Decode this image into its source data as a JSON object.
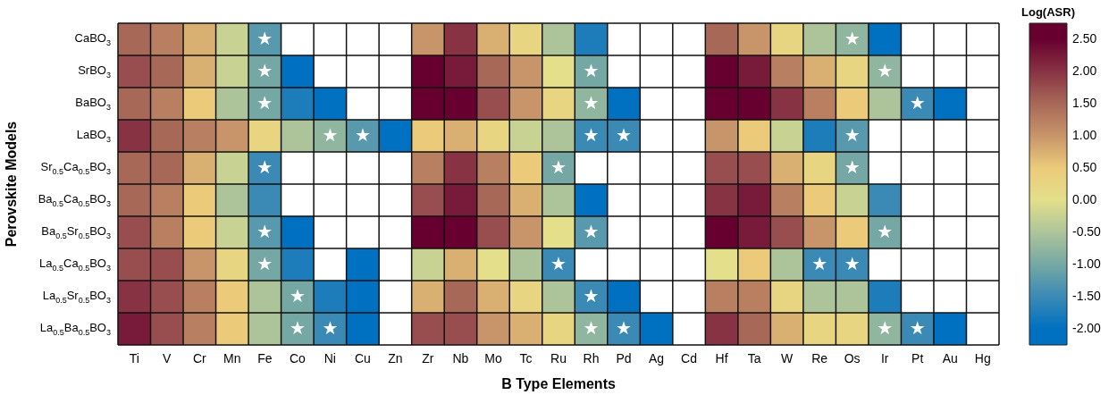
{
  "chart_data": {
    "type": "heatmap",
    "xlabel": "B Type Elements",
    "ylabel": "Perovskite Models",
    "clabel": "Log(ASR)",
    "categories": [
      "Ti",
      "V",
      "Cr",
      "Mn",
      "Fe",
      "Co",
      "Ni",
      "Cu",
      "Zn",
      "Zr",
      "Nb",
      "Mo",
      "Tc",
      "Ru",
      "Rh",
      "Pd",
      "Ag",
      "Cd",
      "Hf",
      "Ta",
      "W",
      "Re",
      "Os",
      "Ir",
      "Pt",
      "Au",
      "Hg"
    ],
    "y_categories": [
      "CaBO$_{3}$",
      "SrBO$_{3}$",
      "BaBO$_{3}$",
      "LaBO$_{3}$",
      "Sr$_{0.5}$Ca$_{0.5}$BO$_{3}$",
      "Ba$_{0.5}$Ca$_{0.5}$BO$_{3}$",
      "Ba$_{0.5}$Sr$_{0.5}$BO$_{3}$",
      "La$_{0.5}$Ca$_{0.5}$BO$_{3}$",
      "La$_{0.5}$Sr$_{0.5}$BO$_{3}$",
      "La$_{0.5}$Ba$_{0.5}$BO$_{3}$"
    ],
    "cells": [
      [
        1.5,
        1.25,
        0.75,
        -0.25,
        -1.25,
        null,
        null,
        null,
        null,
        1.0,
        2.0,
        0.75,
        0.25,
        -0.5,
        -1.75,
        null,
        null,
        null,
        1.5,
        1.0,
        0.25,
        -0.5,
        -0.75,
        -2.0,
        null,
        null,
        null
      ],
      [
        1.75,
        1.5,
        0.75,
        -0.25,
        -1.0,
        -2.0,
        null,
        null,
        null,
        2.5,
        2.25,
        1.5,
        1.0,
        0.0,
        -1.0,
        null,
        null,
        null,
        2.5,
        2.25,
        1.25,
        0.75,
        0.25,
        -0.75,
        null,
        null,
        null
      ],
      [
        1.5,
        1.25,
        0.5,
        -0.5,
        -1.0,
        -1.75,
        -2.0,
        null,
        null,
        2.5,
        2.5,
        1.75,
        1.0,
        0.25,
        -0.75,
        -2.0,
        null,
        null,
        2.5,
        2.5,
        2.0,
        1.25,
        0.5,
        -0.5,
        -1.5,
        -2.0,
        null
      ],
      [
        2.0,
        1.5,
        1.25,
        1.0,
        0.25,
        -0.5,
        -0.75,
        -1.25,
        -2.0,
        0.5,
        0.75,
        0.25,
        -0.25,
        -0.5,
        -1.5,
        -1.5,
        null,
        null,
        1.0,
        0.5,
        -0.25,
        -1.75,
        -1.25,
        null,
        null,
        null,
        null
      ],
      [
        1.5,
        1.5,
        0.75,
        -0.25,
        -1.5,
        null,
        null,
        null,
        null,
        1.25,
        2.0,
        1.25,
        0.5,
        -1.0,
        null,
        null,
        null,
        null,
        1.75,
        1.75,
        0.75,
        0.25,
        -1.0,
        null,
        null,
        null,
        null
      ],
      [
        1.5,
        1.25,
        0.5,
        -0.5,
        -1.5,
        null,
        null,
        null,
        null,
        1.75,
        2.25,
        1.5,
        0.75,
        -0.5,
        -2.0,
        null,
        null,
        null,
        2.0,
        2.25,
        1.25,
        0.5,
        -0.25,
        -1.5,
        null,
        null,
        null
      ],
      [
        1.75,
        1.25,
        0.5,
        -0.25,
        -1.25,
        -2.0,
        null,
        null,
        null,
        2.5,
        2.5,
        1.75,
        1.0,
        0.0,
        -1.25,
        null,
        null,
        null,
        2.5,
        2.25,
        1.75,
        1.0,
        0.5,
        -1.0,
        null,
        null,
        null
      ],
      [
        1.75,
        1.75,
        1.0,
        0.25,
        -1.0,
        -1.75,
        null,
        -2.0,
        null,
        -0.25,
        0.75,
        0.0,
        -0.5,
        -1.5,
        null,
        null,
        null,
        null,
        0.0,
        0.5,
        -0.5,
        -1.5,
        -1.5,
        null,
        null,
        null,
        null
      ],
      [
        2.0,
        1.75,
        1.25,
        0.5,
        -0.5,
        -1.0,
        -1.75,
        -2.0,
        null,
        0.75,
        1.5,
        0.75,
        0.25,
        -0.5,
        -1.5,
        -2.0,
        null,
        null,
        1.25,
        1.25,
        0.25,
        -0.5,
        -0.5,
        -1.75,
        null,
        null,
        null
      ],
      [
        2.25,
        1.75,
        1.25,
        0.5,
        -0.5,
        -1.0,
        -1.5,
        -2.0,
        null,
        1.75,
        1.75,
        1.0,
        0.75,
        0.25,
        -0.75,
        -1.5,
        -2.0,
        null,
        2.0,
        1.5,
        0.75,
        0.25,
        0.25,
        -0.75,
        -1.5,
        -2.0,
        null
      ]
    ],
    "cell_labels": [
      [
        null,
        null,
        null,
        null,
        "★",
        null,
        null,
        null,
        null,
        null,
        null,
        null,
        null,
        null,
        null,
        null,
        null,
        null,
        null,
        null,
        null,
        null,
        "★",
        null,
        null,
        null,
        null
      ],
      [
        null,
        null,
        null,
        null,
        "★",
        null,
        null,
        null,
        null,
        null,
        null,
        null,
        null,
        null,
        "★",
        null,
        null,
        null,
        null,
        null,
        null,
        null,
        null,
        "★",
        null,
        null,
        null
      ],
      [
        null,
        null,
        null,
        null,
        "★",
        null,
        null,
        null,
        null,
        null,
        null,
        null,
        null,
        null,
        "★",
        null,
        null,
        null,
        null,
        null,
        null,
        null,
        null,
        null,
        "★",
        null,
        null
      ],
      [
        null,
        null,
        null,
        null,
        null,
        null,
        "★",
        "★",
        null,
        null,
        null,
        null,
        null,
        null,
        "★",
        "★",
        null,
        null,
        null,
        null,
        null,
        null,
        "★",
        null,
        null,
        null,
        null
      ],
      [
        null,
        null,
        null,
        null,
        "★",
        null,
        null,
        null,
        null,
        null,
        null,
        null,
        null,
        "★",
        null,
        null,
        null,
        null,
        null,
        null,
        null,
        null,
        "★",
        null,
        null,
        null,
        null
      ],
      [
        null,
        null,
        null,
        null,
        null,
        null,
        null,
        null,
        null,
        null,
        null,
        null,
        null,
        null,
        null,
        null,
        null,
        null,
        null,
        null,
        null,
        null,
        null,
        null,
        null,
        null,
        null
      ],
      [
        null,
        null,
        null,
        null,
        "★",
        null,
        null,
        null,
        null,
        null,
        null,
        null,
        null,
        null,
        "★",
        null,
        null,
        null,
        null,
        null,
        null,
        null,
        null,
        "★",
        null,
        null,
        null
      ],
      [
        null,
        null,
        null,
        null,
        "★",
        null,
        null,
        null,
        null,
        null,
        null,
        null,
        null,
        "★",
        null,
        null,
        null,
        null,
        null,
        null,
        null,
        "★",
        "★",
        null,
        null,
        null,
        null
      ],
      [
        null,
        null,
        null,
        null,
        null,
        "★",
        null,
        null,
        null,
        null,
        null,
        null,
        null,
        null,
        "★",
        null,
        null,
        null,
        null,
        null,
        null,
        null,
        null,
        null,
        null,
        null,
        null
      ],
      [
        null,
        null,
        null,
        null,
        null,
        "★",
        "★",
        null,
        null,
        null,
        null,
        null,
        null,
        null,
        "★",
        "★",
        null,
        null,
        null,
        null,
        null,
        null,
        null,
        "★",
        "★",
        null,
        null
      ]
    ],
    "clim": [
      -2.25,
      2.75
    ],
    "cticks": [
      {
        "value": -2.0,
        "label": "-2.00"
      },
      {
        "value": -1.5,
        "label": "-1.50"
      },
      {
        "value": -1.0,
        "label": "-1.00"
      },
      {
        "value": -0.5,
        "label": "-0.50"
      },
      {
        "value": 0.0,
        "label": "0.00"
      },
      {
        "value": 0.5,
        "label": "0.50"
      },
      {
        "value": 1.0,
        "label": "1.00"
      },
      {
        "value": 1.5,
        "label": "1.50"
      },
      {
        "value": 2.0,
        "label": "2.00"
      },
      {
        "value": 2.5,
        "label": "2.50"
      }
    ]
  }
}
